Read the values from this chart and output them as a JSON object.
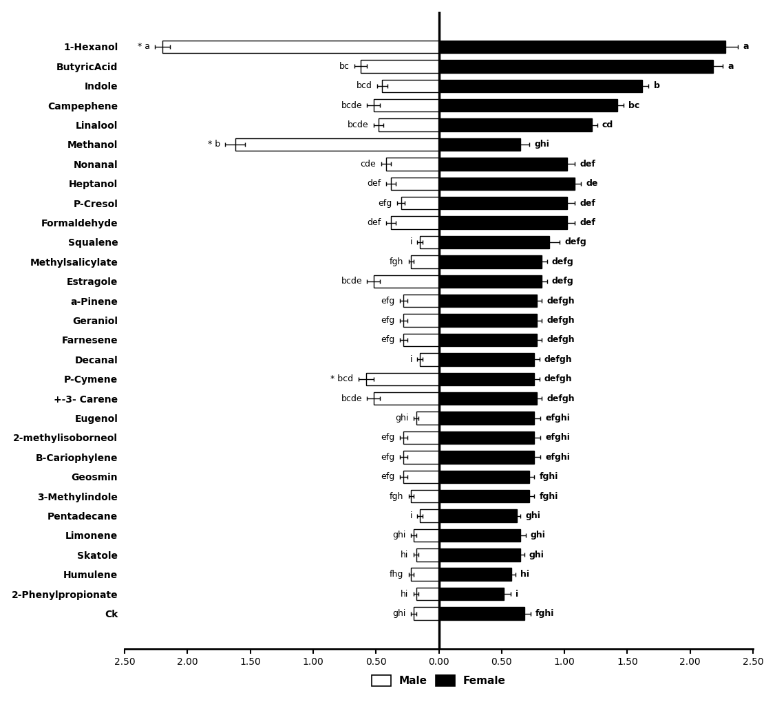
{
  "categories": [
    "1-Hexanol",
    "ButyricAcid",
    "Indole",
    "Campephene",
    "Linalool",
    "Methanol",
    "Nonanal",
    "Heptanol",
    "P-Cresol",
    "Formaldehyde",
    "Squalene",
    "Methylsalicylate",
    "Estragole",
    "a-Pinene",
    "Geraniol",
    "Farnesene",
    "Decanal",
    "P-Cymene",
    "+-3- Carene",
    "Eugenol",
    "2-methylisoborneol",
    "B-Cariophylene",
    "Geosmin",
    "3-Methylindole",
    "Pentadecane",
    "Limonene",
    "Skatole",
    "Humulene",
    "2-Phenylpropionate",
    "Ck"
  ],
  "male_values": [
    -2.2,
    -0.62,
    -0.45,
    -0.52,
    -0.48,
    -1.62,
    -0.42,
    -0.38,
    -0.3,
    -0.38,
    -0.15,
    -0.22,
    -0.52,
    -0.28,
    -0.28,
    -0.28,
    -0.15,
    -0.58,
    -0.52,
    -0.18,
    -0.28,
    -0.28,
    -0.28,
    -0.22,
    -0.15,
    -0.2,
    -0.18,
    -0.22,
    -0.18,
    -0.2
  ],
  "female_values": [
    2.28,
    2.18,
    1.62,
    1.42,
    1.22,
    0.65,
    1.02,
    1.08,
    1.02,
    1.02,
    0.88,
    0.82,
    0.82,
    0.78,
    0.78,
    0.78,
    0.76,
    0.76,
    0.78,
    0.76,
    0.76,
    0.76,
    0.72,
    0.72,
    0.62,
    0.65,
    0.65,
    0.58,
    0.52,
    0.68
  ],
  "male_errors": [
    0.06,
    0.05,
    0.04,
    0.05,
    0.04,
    0.08,
    0.04,
    0.04,
    0.03,
    0.04,
    0.02,
    0.02,
    0.05,
    0.03,
    0.03,
    0.03,
    0.02,
    0.06,
    0.05,
    0.02,
    0.03,
    0.03,
    0.03,
    0.02,
    0.02,
    0.02,
    0.02,
    0.02,
    0.02,
    0.02
  ],
  "female_errors": [
    0.1,
    0.08,
    0.05,
    0.05,
    0.04,
    0.07,
    0.06,
    0.05,
    0.06,
    0.06,
    0.08,
    0.04,
    0.04,
    0.04,
    0.04,
    0.04,
    0.04,
    0.04,
    0.04,
    0.05,
    0.05,
    0.05,
    0.04,
    0.04,
    0.03,
    0.04,
    0.03,
    0.03,
    0.05,
    0.05
  ],
  "male_labels": [
    "* a",
    "bc",
    "bcd",
    "bcde",
    "bcde",
    "* b",
    "cde",
    "def",
    "efg",
    "def",
    "i",
    "fgh",
    "bcde",
    "efg",
    "efg",
    "efg",
    "i",
    "* bcd",
    "bcde",
    "ghi",
    "efg",
    "efg",
    "efg",
    "fgh",
    "i",
    "ghi",
    "hi",
    "fhg",
    "hi",
    "ghi"
  ],
  "female_labels": [
    "a",
    "a",
    "b",
    "bc",
    "cd",
    "ghi",
    "def",
    "de",
    "def",
    "def",
    "defg",
    "defg",
    "defg",
    "defgh",
    "defgh",
    "defgh",
    "defgh",
    "defgh",
    "defgh",
    "efghi",
    "efghi",
    "efghi",
    "fghi",
    "fghi",
    "ghi",
    "ghi",
    "ghi",
    "hi",
    "i",
    "fghi"
  ],
  "male_label_has_star": [
    true,
    false,
    false,
    false,
    false,
    true,
    false,
    false,
    false,
    false,
    false,
    false,
    false,
    false,
    false,
    false,
    false,
    true,
    false,
    false,
    false,
    false,
    false,
    false,
    false,
    false,
    false,
    false,
    false,
    false
  ],
  "bar_height": 0.65,
  "xlim": [
    -2.5,
    2.5
  ],
  "xticks": [
    -2.5,
    -2.0,
    -1.5,
    -1.0,
    -0.5,
    0.0,
    0.5,
    1.0,
    1.5,
    2.0,
    2.5
  ],
  "xticklabels": [
    "2.50",
    "2.00",
    "1.50",
    "1.00",
    "0.50",
    "0.00",
    "0.50",
    "1.00",
    "1.50",
    "2.00",
    "2.50"
  ],
  "male_color": "white",
  "female_color": "black",
  "male_edge_color": "black",
  "female_edge_color": "black",
  "legend_male": "Male",
  "legend_female": "Female",
  "font_size_cat": 10,
  "font_size_sig": 9,
  "font_size_ticks": 10,
  "font_size_legend": 11
}
